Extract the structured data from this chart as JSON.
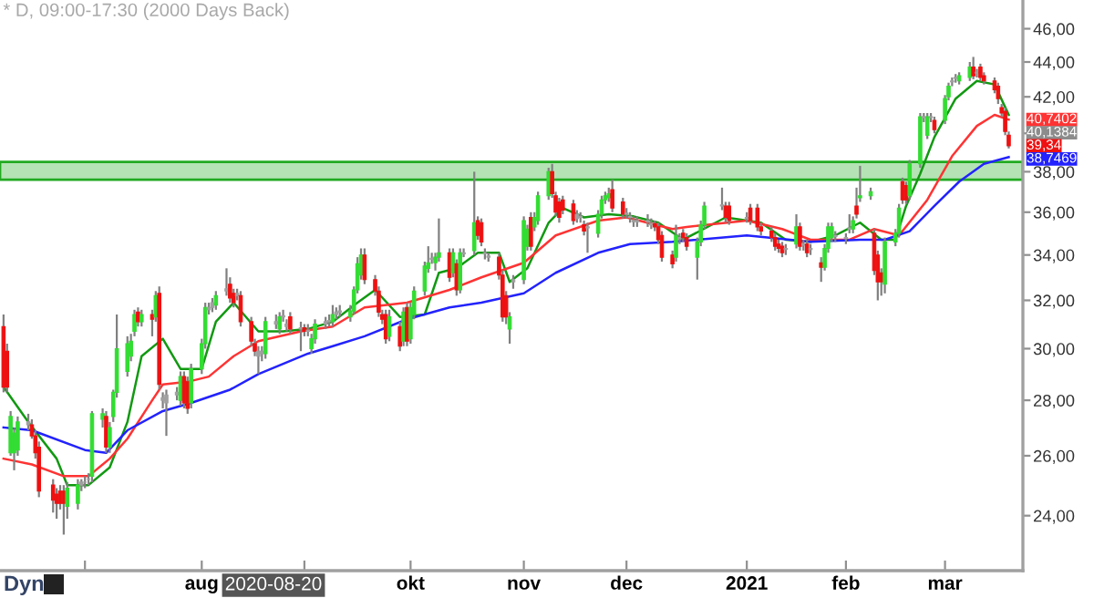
{
  "chart_data": {
    "type": "candlestick",
    "title": "* D, 09:00-17:30 (2000 Days Back)",
    "x": [
      "2020-06-08",
      "2020-06-09",
      "2020-06-10",
      "2020-06-11",
      "2020-06-12",
      "2020-06-15",
      "2020-06-16",
      "2020-06-17",
      "2020-06-18",
      "2020-06-22",
      "2020-06-23",
      "2020-06-24",
      "2020-06-25",
      "2020-06-26",
      "2020-06-29",
      "2020-06-30",
      "2020-07-01",
      "2020-07-02",
      "2020-07-03",
      "2020-07-06",
      "2020-07-07",
      "2020-07-08",
      "2020-07-09",
      "2020-07-10",
      "2020-07-13",
      "2020-07-14",
      "2020-07-15",
      "2020-07-16",
      "2020-07-17",
      "2020-07-20",
      "2020-07-21",
      "2020-07-22",
      "2020-07-23",
      "2020-07-24",
      "2020-07-27",
      "2020-07-28",
      "2020-07-29",
      "2020-07-30",
      "2020-07-31",
      "2020-08-03",
      "2020-08-04",
      "2020-08-05",
      "2020-08-06",
      "2020-08-07",
      "2020-08-10",
      "2020-08-11",
      "2020-08-12",
      "2020-08-13",
      "2020-08-14",
      "2020-08-17",
      "2020-08-18",
      "2020-08-19",
      "2020-08-20",
      "2020-08-21",
      "2020-08-24",
      "2020-08-25",
      "2020-08-26",
      "2020-08-27",
      "2020-08-28",
      "2020-08-31",
      "2020-09-01",
      "2020-09-02",
      "2020-09-03",
      "2020-09-04",
      "2020-09-07",
      "2020-09-08",
      "2020-09-09",
      "2020-09-10",
      "2020-09-11",
      "2020-09-14",
      "2020-09-15",
      "2020-09-16",
      "2020-09-17",
      "2020-09-18",
      "2020-09-21",
      "2020-09-22",
      "2020-09-23",
      "2020-09-24",
      "2020-09-25",
      "2020-09-28",
      "2020-09-29",
      "2020-09-30",
      "2020-10-01",
      "2020-10-02",
      "2020-10-05",
      "2020-10-06",
      "2020-10-07",
      "2020-10-08",
      "2020-10-09",
      "2020-10-12",
      "2020-10-13",
      "2020-10-14",
      "2020-10-15",
      "2020-10-16",
      "2020-10-19",
      "2020-10-20",
      "2020-10-21",
      "2020-10-22",
      "2020-10-23",
      "2020-10-26",
      "2020-10-27",
      "2020-10-28",
      "2020-10-29",
      "2020-10-30",
      "2020-11-02",
      "2020-11-03",
      "2020-11-04",
      "2020-11-05",
      "2020-11-06",
      "2020-11-09",
      "2020-11-10",
      "2020-11-11",
      "2020-11-12",
      "2020-11-13",
      "2020-11-16",
      "2020-11-17",
      "2020-11-18",
      "2020-11-19",
      "2020-11-20",
      "2020-11-23",
      "2020-11-24",
      "2020-11-25",
      "2020-11-26",
      "2020-11-27",
      "2020-11-30",
      "2020-12-01",
      "2020-12-02",
      "2020-12-03",
      "2020-12-04",
      "2020-12-07",
      "2020-12-08",
      "2020-12-09",
      "2020-12-10",
      "2020-12-11",
      "2020-12-14",
      "2020-12-15",
      "2020-12-16",
      "2020-12-17",
      "2020-12-18",
      "2020-12-21",
      "2020-12-22",
      "2020-12-23",
      "2020-12-28",
      "2020-12-29",
      "2020-12-30",
      "2021-01-04",
      "2021-01-05",
      "2021-01-07",
      "2021-01-08",
      "2021-01-11",
      "2021-01-12",
      "2021-01-13",
      "2021-01-14",
      "2021-01-15",
      "2021-01-18",
      "2021-01-19",
      "2021-01-20",
      "2021-01-21",
      "2021-01-22",
      "2021-01-25",
      "2021-01-26",
      "2021-01-27",
      "2021-01-28",
      "2021-01-29",
      "2021-02-01",
      "2021-02-02",
      "2021-02-03",
      "2021-02-04",
      "2021-02-05",
      "2021-02-08",
      "2021-02-09",
      "2021-02-10",
      "2021-02-11",
      "2021-02-12",
      "2021-02-15",
      "2021-02-16",
      "2021-02-17",
      "2021-02-18",
      "2021-02-19",
      "2021-02-22",
      "2021-02-23",
      "2021-02-24",
      "2021-02-25",
      "2021-02-26",
      "2021-03-01",
      "2021-03-02",
      "2021-03-03",
      "2021-03-04",
      "2021-03-05",
      "2021-03-08",
      "2021-03-09",
      "2021-03-10",
      "2021-03-11",
      "2021-03-12",
      "2021-03-15",
      "2021-03-16",
      "2021-03-17",
      "2021-03-18",
      "2021-03-19"
    ],
    "ohlc": [
      [
        30.9,
        31.4,
        28.3,
        28.5
      ],
      [
        29.9,
        30.2,
        28.3,
        28.5
      ],
      [
        26.1,
        27.6,
        26.0,
        27.4
      ],
      [
        26.1,
        27.0,
        25.5,
        26.8
      ],
      [
        26.2,
        27.4,
        26.0,
        27.2
      ],
      [
        27.1,
        27.5,
        26.9,
        27.2
      ],
      [
        27.1,
        27.3,
        26.6,
        26.7
      ],
      [
        26.7,
        26.9,
        25.9,
        26.1
      ],
      [
        26.3,
        26.5,
        24.6,
        24.8
      ],
      [
        25.0,
        25.2,
        24.1,
        24.5
      ],
      [
        24.7,
        24.9,
        23.9,
        24.4
      ],
      [
        24.8,
        25.0,
        24.2,
        24.4
      ],
      [
        24.8,
        25.0,
        23.4,
        24.4
      ],
      [
        24.3,
        25.1,
        23.9,
        24.9
      ],
      [
        24.4,
        25.2,
        24.2,
        25.0
      ],
      [
        25.0,
        25.2,
        24.8,
        25.1
      ],
      [
        25.1,
        25.3,
        24.9,
        25.1
      ],
      [
        25.2,
        25.4,
        25.0,
        25.2
      ],
      [
        25.3,
        27.6,
        25.1,
        27.5
      ],
      [
        27.3,
        27.7,
        27.0,
        27.5
      ],
      [
        27.4,
        27.6,
        26.1,
        26.3
      ],
      [
        26.3,
        27.2,
        26.1,
        27.0
      ],
      [
        27.4,
        28.4,
        27.2,
        28.3
      ],
      [
        28.3,
        31.4,
        28.1,
        30.0
      ],
      [
        29.1,
        30.5,
        28.9,
        30.2
      ],
      [
        29.7,
        30.6,
        29.5,
        30.3
      ],
      [
        30.7,
        31.6,
        30.5,
        31.4
      ],
      [
        31.5,
        31.7,
        30.9,
        31.1
      ],
      [
        31.1,
        31.6,
        30.9,
        31.4
      ],
      [
        31.4,
        31.6,
        30.5,
        31.2
      ],
      [
        31.3,
        32.4,
        31.1,
        32.2
      ],
      [
        32.3,
        32.6,
        28.4,
        28.6
      ],
      [
        28.0,
        28.3,
        27.7,
        28.1
      ],
      [
        27.9,
        28.4,
        26.7,
        28.2
      ],
      [
        28.2,
        28.5,
        28.0,
        28.3
      ],
      [
        28.0,
        29.1,
        27.8,
        28.9
      ],
      [
        28.9,
        29.1,
        27.7,
        27.9
      ],
      [
        28.7,
        28.9,
        27.5,
        27.7
      ],
      [
        27.9,
        29.4,
        27.7,
        29.2
      ],
      [
        29.2,
        30.4,
        29.0,
        30.2
      ],
      [
        30.2,
        31.9,
        30.0,
        31.7
      ],
      [
        31.6,
        31.9,
        31.4,
        31.7
      ],
      [
        31.7,
        32.1,
        31.5,
        31.9
      ],
      [
        31.8,
        32.4,
        31.6,
        32.2
      ],
      [
        32.4,
        33.4,
        32.2,
        32.5
      ],
      [
        32.7,
        33.0,
        31.9,
        32.1
      ],
      [
        32.3,
        32.5,
        31.7,
        31.9
      ],
      [
        32.3,
        32.5,
        32.0,
        32.2
      ],
      [
        32.2,
        32.4,
        30.9,
        31.1
      ],
      [
        31.1,
        31.3,
        30.1,
        30.3
      ],
      [
        30.2,
        30.4,
        29.7,
        29.9
      ],
      [
        29.9,
        30.1,
        29.0,
        29.7
      ],
      [
        29.8,
        30.1,
        29.5,
        29.9
      ],
      [
        29.8,
        31.3,
        29.6,
        31.1
      ],
      [
        31.1,
        31.4,
        30.8,
        31.0
      ],
      [
        30.8,
        31.5,
        30.6,
        31.3
      ],
      [
        31.3,
        31.6,
        31.1,
        31.35
      ],
      [
        31.0,
        31.2,
        30.7,
        30.9
      ],
      [
        31.3,
        31.5,
        30.6,
        30.8
      ],
      [
        30.8,
        31.1,
        29.9,
        30.85
      ],
      [
        30.85,
        31.0,
        30.5,
        30.7
      ],
      [
        30.7,
        31.0,
        30.5,
        30.75
      ],
      [
        30.0,
        30.6,
        29.8,
        30.4
      ],
      [
        30.4,
        31.2,
        30.2,
        31.0
      ],
      [
        31.0,
        31.3,
        30.8,
        31.1
      ],
      [
        31.1,
        31.4,
        30.9,
        31.15
      ],
      [
        31.1,
        31.8,
        30.9,
        31.4
      ],
      [
        31.4,
        31.7,
        31.2,
        31.5
      ],
      [
        31.5,
        31.8,
        31.3,
        31.55
      ],
      [
        31.3,
        31.8,
        31.1,
        31.55
      ],
      [
        31.55,
        32.6,
        31.4,
        32.45
      ],
      [
        32.45,
        33.9,
        32.3,
        33.6
      ],
      [
        33.1,
        34.3,
        32.9,
        34.0
      ],
      [
        34.0,
        34.3,
        32.7,
        32.9
      ],
      [
        32.9,
        33.1,
        32.2,
        32.4
      ],
      [
        32.4,
        32.6,
        31.3,
        31.5
      ],
      [
        31.4,
        31.6,
        31.0,
        31.2
      ],
      [
        31.4,
        31.6,
        30.2,
        30.4
      ],
      [
        30.5,
        31.6,
        30.3,
        31.3
      ],
      [
        30.9,
        31.1,
        29.9,
        30.1
      ],
      [
        30.3,
        31.7,
        30.1,
        31.5
      ],
      [
        31.7,
        31.9,
        30.1,
        30.3
      ],
      [
        30.4,
        31.9,
        30.2,
        31.7
      ],
      [
        31.4,
        32.6,
        31.2,
        32.4
      ],
      [
        32.4,
        33.7,
        32.2,
        33.5
      ],
      [
        33.4,
        34.4,
        33.2,
        33.65
      ],
      [
        33.8,
        34.1,
        33.6,
        33.85
      ],
      [
        33.65,
        34.1,
        33.3,
        33.9
      ],
      [
        33.9,
        35.7,
        33.7,
        34.1
      ],
      [
        34.1,
        34.3,
        32.8,
        33.0
      ],
      [
        33.2,
        34.3,
        33.0,
        34.1
      ],
      [
        33.6,
        33.8,
        32.2,
        32.45
      ],
      [
        32.45,
        34.3,
        32.3,
        34.1
      ],
      [
        34.05,
        34.3,
        33.9,
        34.1
      ],
      [
        34.2,
        38.0,
        34.0,
        35.5
      ],
      [
        35.6,
        35.8,
        34.7,
        34.9
      ],
      [
        35.5,
        35.7,
        34.4,
        34.6
      ],
      [
        34.1,
        34.3,
        33.8,
        34.05
      ],
      [
        33.95,
        34.1,
        33.7,
        33.9
      ],
      [
        33.9,
        34.1,
        32.9,
        33.1
      ],
      [
        33.1,
        33.3,
        31.1,
        31.3
      ],
      [
        32.2,
        32.4,
        31.0,
        31.3
      ],
      [
        30.8,
        31.5,
        30.2,
        31.3
      ],
      [
        32.8,
        33.1,
        32.5,
        32.9
      ],
      [
        32.9,
        35.8,
        32.7,
        35.6
      ],
      [
        34.4,
        35.4,
        34.2,
        35.2
      ],
      [
        35.75,
        36.0,
        34.2,
        34.4
      ],
      [
        35.3,
        36.0,
        35.1,
        35.75
      ],
      [
        35.6,
        37.0,
        35.4,
        36.8
      ],
      [
        36.8,
        38.2,
        36.6,
        38.0
      ],
      [
        38.0,
        38.4,
        36.7,
        36.9
      ],
      [
        36.8,
        37.0,
        35.8,
        36.0
      ],
      [
        36.5,
        36.7,
        35.5,
        35.75
      ],
      [
        36.6,
        36.8,
        35.9,
        36.1
      ],
      [
        36.4,
        36.6,
        35.4,
        35.6
      ],
      [
        35.7,
        36.1,
        35.5,
        35.9
      ],
      [
        35.75,
        36.0,
        35.5,
        35.8
      ],
      [
        35.4,
        35.6,
        34.9,
        35.1
      ],
      [
        35.3,
        35.5,
        34.1,
        35.25
      ],
      [
        35.0,
        36.1,
        34.8,
        35.9
      ],
      [
        35.9,
        36.8,
        35.7,
        36.6
      ],
      [
        36.6,
        37.0,
        36.4,
        36.8
      ],
      [
        36.7,
        37.2,
        36.5,
        36.9
      ],
      [
        37.1,
        37.6,
        36.0,
        36.2
      ],
      [
        36.5,
        36.7,
        35.7,
        35.9
      ],
      [
        35.95,
        36.2,
        35.7,
        35.9
      ],
      [
        35.8,
        36.0,
        35.5,
        35.75
      ],
      [
        35.6,
        35.8,
        35.3,
        35.55
      ],
      [
        35.55,
        35.8,
        35.3,
        35.6
      ],
      [
        35.6,
        35.9,
        35.3,
        35.55
      ],
      [
        35.45,
        35.7,
        35.2,
        35.4
      ],
      [
        35.45,
        35.6,
        35.1,
        35.3
      ],
      [
        35.3,
        35.5,
        34.5,
        34.7
      ],
      [
        34.9,
        35.1,
        33.7,
        33.9
      ],
      [
        34.0,
        34.2,
        33.4,
        33.6
      ],
      [
        33.9,
        35.4,
        33.7,
        34.9
      ],
      [
        34.8,
        35.0,
        34.5,
        34.75
      ],
      [
        35.0,
        35.2,
        34.6,
        34.8
      ],
      [
        34.8,
        35.0,
        34.2,
        34.4
      ],
      [
        33.9,
        34.8,
        32.9,
        34.6
      ],
      [
        34.6,
        35.6,
        34.4,
        35.4
      ],
      [
        35.4,
        36.5,
        35.2,
        36.3
      ],
      [
        36.3,
        37.2,
        36.1,
        36.35
      ],
      [
        36.3,
        36.5,
        35.5,
        35.75
      ],
      [
        36.3,
        36.5,
        35.4,
        35.6
      ],
      [
        35.75,
        36.0,
        35.5,
        35.7
      ],
      [
        36.2,
        36.4,
        35.4,
        35.6
      ],
      [
        36.2,
        36.4,
        35.1,
        35.3
      ],
      [
        35.3,
        35.5,
        34.9,
        35.1
      ],
      [
        35.1,
        35.3,
        34.6,
        34.8
      ],
      [
        34.8,
        35.0,
        34.2,
        34.4
      ],
      [
        34.5,
        34.7,
        34.1,
        34.3
      ],
      [
        34.4,
        34.6,
        33.9,
        34.1
      ],
      [
        34.3,
        34.5,
        34.0,
        34.25
      ],
      [
        34.5,
        35.9,
        34.3,
        35.3
      ],
      [
        35.3,
        35.5,
        34.2,
        34.4
      ],
      [
        34.5,
        34.7,
        34.2,
        34.45
      ],
      [
        34.5,
        34.7,
        33.9,
        34.1
      ],
      [
        34.3,
        34.5,
        34.0,
        34.25
      ],
      [
        33.65,
        33.9,
        32.8,
        33.45
      ],
      [
        33.45,
        34.5,
        33.3,
        34.3
      ],
      [
        34.3,
        35.5,
        34.1,
        35.3
      ],
      [
        34.8,
        35.5,
        34.6,
        35.3
      ],
      [
        34.9,
        35.1,
        34.6,
        34.85
      ],
      [
        34.8,
        35.0,
        34.5,
        34.75
      ],
      [
        35.2,
        35.9,
        35.0,
        35.25
      ],
      [
        35.2,
        35.8,
        35.0,
        35.6
      ],
      [
        36.3,
        37.2,
        35.7,
        35.9
      ],
      [
        36.7,
        38.3,
        36.5,
        36.8
      ],
      [
        36.8,
        37.2,
        36.6,
        37.0
      ],
      [
        35.0,
        35.2,
        33.1,
        33.3
      ],
      [
        34.0,
        34.2,
        32.0,
        32.8
      ],
      [
        33.2,
        33.4,
        32.2,
        32.8
      ],
      [
        32.7,
        34.8,
        32.3,
        34.6
      ],
      [
        34.6,
        35.2,
        34.4,
        35.0
      ],
      [
        35.0,
        36.4,
        34.8,
        36.2
      ],
      [
        37.5,
        37.7,
        36.4,
        36.6
      ],
      [
        37.3,
        37.5,
        36.4,
        36.6
      ],
      [
        36.8,
        38.6,
        36.6,
        38.4
      ],
      [
        38.4,
        41.1,
        38.2,
        40.9
      ],
      [
        40.9,
        41.1,
        40.6,
        40.85
      ],
      [
        39.9,
        41.1,
        39.7,
        40.9
      ],
      [
        40.85,
        41.1,
        40.6,
        40.9
      ],
      [
        40.7,
        40.9,
        40.0,
        40.2
      ],
      [
        40.7,
        42.1,
        40.5,
        41.9
      ],
      [
        42.0,
        42.8,
        41.8,
        42.6
      ],
      [
        42.85,
        43.1,
        42.6,
        42.9
      ],
      [
        43.1,
        43.3,
        42.8,
        43.05
      ],
      [
        42.9,
        43.4,
        42.7,
        43.2
      ],
      [
        43.1,
        44.0,
        42.9,
        43.7
      ],
      [
        43.7,
        44.3,
        43.0,
        43.2
      ],
      [
        43.4,
        43.6,
        43.1,
        43.35
      ],
      [
        43.7,
        43.9,
        42.9,
        43.1
      ],
      [
        43.2,
        43.4,
        42.7,
        42.9
      ],
      [
        42.9,
        43.1,
        42.2,
        42.4
      ],
      [
        42.6,
        42.8,
        41.6,
        41.9
      ],
      [
        41.4,
        41.6,
        40.9,
        41.1
      ],
      [
        41.2,
        41.4,
        39.9,
        40.1
      ],
      [
        39.9,
        40.1,
        39.2,
        39.34
      ]
    ],
    "colors": [
      "#ee1111",
      "#ee1111",
      "#33dd33",
      "#33dd33",
      "#33dd33",
      "#a0a0a0",
      "#ee1111",
      "#ee1111",
      "#ee1111",
      "#ee1111",
      "#ee1111",
      "#ee1111",
      "#ee1111",
      "#33dd33",
      "#33dd33",
      "#a0a0a0",
      "#a0a0a0",
      "#a0a0a0",
      "#33dd33",
      "#33dd33",
      "#ee1111",
      "#33dd33",
      "#33dd33",
      "#33dd33",
      "#33dd33",
      "#33dd33",
      "#33dd33",
      "#ee1111",
      "#33dd33",
      "#ee1111",
      "#33dd33",
      "#ee1111",
      "#a0a0a0",
      "#a0a0a0",
      "#a0a0a0",
      "#33dd33",
      "#ee1111",
      "#ee1111",
      "#33dd33",
      "#33dd33",
      "#33dd33",
      "#a0a0a0",
      "#a0a0a0",
      "#33dd33",
      "#a0a0a0",
      "#ee1111",
      "#ee1111",
      "#a0a0a0",
      "#ee1111",
      "#ee1111",
      "#ee1111",
      "#a0a0a0",
      "#a0a0a0",
      "#33dd33",
      "#a0a0a0",
      "#33dd33",
      "#a0a0a0",
      "#a0a0a0",
      "#ee1111",
      "#a0a0a0",
      "#ee1111",
      "#a0a0a0",
      "#33dd33",
      "#33dd33",
      "#a0a0a0",
      "#a0a0a0",
      "#33dd33",
      "#a0a0a0",
      "#a0a0a0",
      "#33dd33",
      "#33dd33",
      "#33dd33",
      "#33dd33",
      "#ee1111",
      "#ee1111",
      "#ee1111",
      "#ee1111",
      "#ee1111",
      "#33dd33",
      "#ee1111",
      "#33dd33",
      "#ee1111",
      "#33dd33",
      "#33dd33",
      "#33dd33",
      "#33dd33",
      "#a0a0a0",
      "#33dd33",
      "#33dd33",
      "#ee1111",
      "#33dd33",
      "#ee1111",
      "#33dd33",
      "#a0a0a0",
      "#33dd33",
      "#ee1111",
      "#ee1111",
      "#a0a0a0",
      "#a0a0a0",
      "#ee1111",
      "#ee1111",
      "#ee1111",
      "#33dd33",
      "#a0a0a0",
      "#33dd33",
      "#33dd33",
      "#ee1111",
      "#33dd33",
      "#33dd33",
      "#33dd33",
      "#ee1111",
      "#ee1111",
      "#ee1111",
      "#ee1111",
      "#ee1111",
      "#a0a0a0",
      "#a0a0a0",
      "#ee1111",
      "#a0a0a0",
      "#33dd33",
      "#33dd33",
      "#33dd33",
      "#33dd33",
      "#ee1111",
      "#ee1111",
      "#a0a0a0",
      "#a0a0a0",
      "#a0a0a0",
      "#a0a0a0",
      "#a0a0a0",
      "#a0a0a0",
      "#ee1111",
      "#ee1111",
      "#ee1111",
      "#ee1111",
      "#33dd33",
      "#a0a0a0",
      "#ee1111",
      "#ee1111",
      "#33dd33",
      "#33dd33",
      "#33dd33",
      "#a0a0a0",
      "#ee1111",
      "#ee1111",
      "#a0a0a0",
      "#ee1111",
      "#ee1111",
      "#ee1111",
      "#ee1111",
      "#ee1111",
      "#ee1111",
      "#ee1111",
      "#a0a0a0",
      "#33dd33",
      "#ee1111",
      "#a0a0a0",
      "#ee1111",
      "#a0a0a0",
      "#ee1111",
      "#33dd33",
      "#33dd33",
      "#33dd33",
      "#a0a0a0",
      "#a0a0a0",
      "#a0a0a0",
      "#33dd33",
      "#ee1111",
      "#33dd33",
      "#33dd33",
      "#ee1111",
      "#ee1111",
      "#ee1111",
      "#33dd33",
      "#33dd33",
      "#33dd33",
      "#ee1111",
      "#ee1111",
      "#33dd33",
      "#33dd33",
      "#a0a0a0",
      "#33dd33",
      "#a0a0a0",
      "#ee1111",
      "#33dd33",
      "#33dd33",
      "#a0a0a0",
      "#a0a0a0",
      "#33dd33",
      "#33dd33",
      "#ee1111",
      "#a0a0a0",
      "#ee1111",
      "#ee1111",
      "#ee1111",
      "#ee1111",
      "#ee1111",
      "#ee1111",
      "#ee1111"
    ],
    "series": [
      {
        "type": "line",
        "color": "#119911",
        "x": [
          "2020-06-08",
          "2020-06-15",
          "2020-06-23",
          "2020-06-26",
          "2020-07-02",
          "2020-07-08",
          "2020-07-13",
          "2020-07-17",
          "2020-07-23",
          "2020-07-28",
          "2020-08-03",
          "2020-08-07",
          "2020-08-12",
          "2020-08-19",
          "2020-08-26",
          "2020-09-02",
          "2020-09-09",
          "2020-09-16",
          "2020-09-21",
          "2020-09-28",
          "2020-10-05",
          "2020-10-09",
          "2020-10-14",
          "2020-10-20",
          "2020-10-26",
          "2020-10-29",
          "2020-11-03",
          "2020-11-09",
          "2020-11-13",
          "2020-11-19",
          "2020-11-26",
          "2020-12-03",
          "2020-12-10",
          "2020-12-17",
          "2020-12-29",
          "2021-01-08",
          "2021-01-15",
          "2021-01-22",
          "2021-01-29",
          "2021-02-05",
          "2021-02-11",
          "2021-02-15",
          "2021-02-18",
          "2021-02-22",
          "2021-02-26",
          "2021-03-04",
          "2021-03-10",
          "2021-03-15",
          "2021-03-19"
        ],
        "values": [
          28.5,
          27.2,
          25.9,
          25.0,
          25.0,
          25.6,
          27.2,
          29.7,
          30.4,
          29.2,
          29.2,
          31.1,
          31.9,
          30.7,
          30.7,
          30.8,
          31.1,
          31.9,
          32.45,
          31.3,
          31.4,
          33.2,
          33.4,
          34.1,
          34.1,
          32.8,
          33.4,
          35.5,
          36.2,
          35.75,
          35.9,
          35.8,
          35.5,
          34.7,
          35.75,
          35.5,
          34.7,
          34.6,
          34.9,
          35.5,
          34.7,
          34.7,
          36.3,
          37.9,
          39.8,
          41.9,
          42.9,
          42.7,
          41.0
        ]
      },
      {
        "type": "line",
        "color": "#ff3333",
        "x": [
          "2020-06-08",
          "2020-06-16",
          "2020-06-25",
          "2020-07-02",
          "2020-07-08",
          "2020-07-13",
          "2020-07-20",
          "2020-07-23",
          "2020-07-30",
          "2020-08-05",
          "2020-08-12",
          "2020-08-19",
          "2020-08-31",
          "2020-09-09",
          "2020-09-18",
          "2020-09-30",
          "2020-10-12",
          "2020-10-21",
          "2020-11-02",
          "2020-11-11",
          "2020-11-23",
          "2020-12-01",
          "2020-12-14",
          "2020-12-18",
          "2021-01-04",
          "2021-01-14",
          "2021-01-22",
          "2021-02-02",
          "2021-02-09",
          "2021-02-16",
          "2021-02-24",
          "2021-03-03",
          "2021-03-10",
          "2021-03-15",
          "2021-03-19"
        ],
        "values": [
          25.9,
          25.7,
          25.3,
          25.3,
          25.9,
          26.6,
          28.0,
          28.6,
          28.7,
          28.9,
          29.7,
          30.3,
          30.7,
          30.9,
          31.7,
          31.9,
          32.45,
          33.0,
          33.65,
          34.9,
          35.6,
          35.75,
          35.2,
          35.3,
          35.6,
          35.2,
          34.7,
          34.7,
          35.2,
          34.9,
          36.6,
          38.8,
          40.4,
          41.0,
          40.7402
        ],
        "value_labels": [
          null,
          null,
          null,
          null,
          null,
          null,
          null,
          null,
          null,
          null,
          null,
          null,
          null,
          null,
          null,
          null,
          null,
          null,
          null,
          null,
          null,
          null,
          null,
          null,
          null,
          null,
          null,
          null,
          null,
          null,
          null,
          null,
          null,
          null,
          "40,7402"
        ]
      },
      {
        "type": "line",
        "color": "#2222ff",
        "x": [
          "2020-06-08",
          "2020-06-16",
          "2020-07-01",
          "2020-07-07",
          "2020-07-13",
          "2020-07-23",
          "2020-07-31",
          "2020-08-11",
          "2020-08-19",
          "2020-09-02",
          "2020-09-09",
          "2020-09-18",
          "2020-09-30",
          "2020-10-12",
          "2020-10-21",
          "2020-11-02",
          "2020-11-11",
          "2020-11-23",
          "2020-12-02",
          "2020-12-14",
          "2021-01-04",
          "2021-01-22",
          "2021-02-05",
          "2021-02-12",
          "2021-02-19",
          "2021-02-26",
          "2021-03-05",
          "2021-03-12",
          "2021-03-19"
        ],
        "values": [
          27.0,
          26.9,
          26.2,
          26.1,
          26.9,
          27.6,
          27.9,
          28.4,
          29.0,
          29.8,
          30.1,
          30.5,
          31.2,
          31.7,
          31.9,
          32.3,
          33.2,
          34.1,
          34.5,
          34.6,
          34.9,
          34.6,
          34.7,
          34.7,
          35.1,
          36.3,
          37.5,
          38.4,
          38.7469
        ],
        "value_labels": [
          null,
          null,
          null,
          null,
          null,
          null,
          null,
          null,
          null,
          null,
          null,
          null,
          null,
          null,
          null,
          null,
          null,
          null,
          null,
          null,
          null,
          null,
          null,
          null,
          null,
          null,
          null,
          null,
          "38,7469"
        ]
      }
    ],
    "log": "y",
    "ylim": [
      22.3,
      47.8
    ],
    "yticks": [
      {
        "value": 24,
        "label": "24,00"
      },
      {
        "value": 26,
        "label": "26,00"
      },
      {
        "value": 28,
        "label": "28,00"
      },
      {
        "value": 30,
        "label": "30,00"
      },
      {
        "value": 32,
        "label": "32,00"
      },
      {
        "value": 34,
        "label": "34,00"
      },
      {
        "value": 36,
        "label": "36,00"
      },
      {
        "value": 38,
        "label": "38,00"
      },
      {
        "value": 40,
        "label": null
      },
      {
        "value": 42,
        "label": "42,00"
      },
      {
        "value": 44,
        "label": "44,00"
      },
      {
        "value": 46,
        "label": "46,00"
      }
    ],
    "xlim": [
      "2020-06-07",
      "2021-03-23"
    ],
    "xticks": [
      {
        "value": "2020-07-01",
        "label": null
      },
      {
        "value": "2020-08-03",
        "label": "aug"
      },
      {
        "value": "2020-09-01",
        "label": null
      },
      {
        "value": "2020-10-01",
        "label": "okt"
      },
      {
        "value": "2020-11-02",
        "label": "nov"
      },
      {
        "value": "2020-12-01",
        "label": "dec"
      },
      {
        "value": "2021-01-04",
        "label": "2021"
      },
      {
        "value": "2021-02-01",
        "label": "feb"
      },
      {
        "value": "2021-03-01",
        "label": "mar"
      }
    ],
    "bands": [
      {
        "axis": "y",
        "from": 37.6,
        "to": 38.5,
        "color": "#b5e3b5"
      }
    ],
    "value_labels": [
      null,
      null,
      null,
      null,
      null,
      null,
      null,
      null,
      null,
      null,
      null,
      null,
      null,
      null,
      null,
      null,
      null,
      null,
      null,
      null,
      null,
      null,
      null,
      null,
      null,
      null,
      null,
      null,
      null,
      null,
      null,
      null,
      null,
      null,
      null,
      null,
      null,
      null,
      null,
      null,
      null,
      null,
      null,
      null,
      null,
      null,
      null,
      null,
      null,
      null,
      null,
      null,
      null,
      null,
      null,
      null,
      null,
      null,
      null,
      null,
      null,
      null,
      null,
      null,
      null,
      null,
      null,
      null,
      null,
      null,
      null,
      null,
      null,
      null,
      null,
      null,
      null,
      null,
      null,
      null,
      null,
      null,
      null,
      null,
      null,
      null,
      null,
      null,
      null,
      null,
      null,
      null,
      null,
      null,
      null,
      null,
      null,
      null,
      null,
      null,
      null,
      null,
      null,
      null,
      null,
      null,
      null,
      null,
      null,
      null,
      null,
      null,
      null,
      null,
      null,
      null,
      null,
      null,
      null,
      null,
      null,
      null,
      null,
      null,
      null,
      null,
      null,
      null,
      null,
      null,
      null,
      null,
      null,
      null,
      null,
      null,
      null,
      null,
      null,
      null,
      null,
      null,
      null,
      null,
      null,
      null,
      null,
      null,
      null,
      null,
      null,
      null,
      null,
      null,
      null,
      null,
      null,
      null,
      null,
      null,
      null,
      null,
      null,
      null,
      null,
      null,
      null,
      null,
      null,
      null,
      null,
      null,
      null,
      null,
      null,
      null,
      null,
      null,
      null,
      null,
      null,
      null,
      null,
      null,
      null,
      null,
      null,
      null,
      null,
      null,
      null,
      null,
      null,
      null,
      null,
      null,
      null,
      null,
      "39,34"
    ],
    "annotations": [
      "Dyn",
      "2020-08-20",
      "40,1384"
    ]
  }
}
